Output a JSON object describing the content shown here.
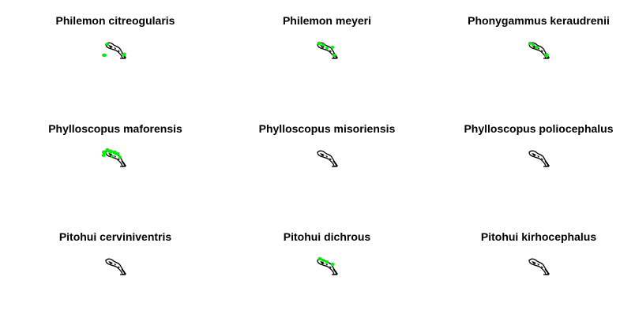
{
  "figure": {
    "background_color": "#ffffff",
    "outline_color": "#000000",
    "occurrence_color": "#00ee00"
  },
  "panels": [
    {
      "title": "Philemon citreogularis",
      "occurrence_level": "few"
    },
    {
      "title": "Philemon meyeri",
      "occurrence_level": "some"
    },
    {
      "title": "Phonygammus keraudrenii",
      "occurrence_level": "some"
    },
    {
      "title": "Phylloscopus maforensis",
      "occurrence_level": "many"
    },
    {
      "title": "Phylloscopus misoriensis",
      "occurrence_level": "none"
    },
    {
      "title": "Phylloscopus poliocephalus",
      "occurrence_level": "none"
    },
    {
      "title": "Pitohui cerviniventris",
      "occurrence_level": "none"
    },
    {
      "title": "Pitohui dichrous",
      "occurrence_level": "some"
    },
    {
      "title": "Pitohui kirhocephalus",
      "occurrence_level": "none"
    }
  ]
}
